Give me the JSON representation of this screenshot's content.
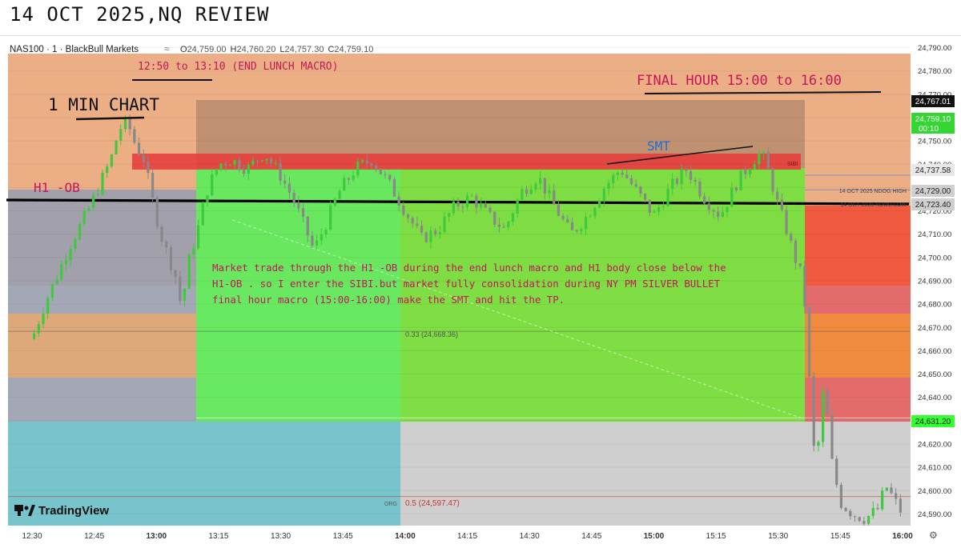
{
  "page_title": "14 OCT 2025,NQ REVIEW",
  "header": {
    "symbol": "NAS100 · 1 · BlackBull Markets",
    "ohlc": [
      {
        "k": "O",
        "v": "24,759.00"
      },
      {
        "k": "H",
        "v": "24,760.20"
      },
      {
        "k": "L",
        "v": "24,757.30"
      },
      {
        "k": "C",
        "v": "24,759.10"
      }
    ]
  },
  "annotations": {
    "lunch_macro": "12:50 to 13:10 (END LUNCH MACRO)",
    "final_hour": "FINAL HOUR 15:00 to 16:00",
    "min_chart": "1 MIN CHART",
    "h1_ob": "H1 -OB",
    "smt": "SMT",
    "sibi": "SIBI",
    "ndog_high": "14 OCT 2025 NDOG HIGH",
    "ndog_low": "14 OCT 2025 NDOG LOW",
    "fib_033": "0.33 (24,668.36)",
    "fib_05": "0.5 (24,597.47)",
    "org": "ORG",
    "note_lines": [
      "Market trade through the H1 -OB during the end lunch macro and H1 body close below the",
      "H1-OB . so I enter the SIBI.but market fully consolidation during NY PM SILVER BULLET",
      "final hour macro (15:00-16:00) make the SMT and hit the TP."
    ]
  },
  "price_labels": {
    "top": "24,767.01",
    "current": "24,759.10",
    "countdown": "00:10",
    "p737": "24,737.58",
    "p729": "24,729.00",
    "p723": "24,723.40",
    "tp": "24,631.20"
  },
  "watermark": "TradingView",
  "colors": {
    "orange_zone": "#e8a070",
    "green_zone": "#5cf25c",
    "cyan_zone": "#78c4cc",
    "red_box": "#e83a3a",
    "up_candle": "#3ec93e",
    "down_candle": "#888888"
  },
  "chart_data": {
    "type": "candlestick",
    "y_ticks": [
      24590,
      24600,
      24610,
      24620,
      24630,
      24640,
      24650,
      24660,
      24670,
      24680,
      24690,
      24700,
      24710,
      24720,
      24730,
      24740,
      24750,
      24760,
      24770,
      24780,
      24790
    ],
    "ylim": [
      24585,
      24795
    ],
    "x_ticks": [
      "12:30",
      "12:45",
      "13:00",
      "13:15",
      "13:30",
      "13:45",
      "14:00",
      "14:15",
      "14:30",
      "14:45",
      "15:00",
      "15:15",
      "15:30",
      "15:45",
      "16:00"
    ],
    "x_range_minutes": [
      0,
      210
    ],
    "price_path": [
      [
        0,
        24665
      ],
      [
        3,
        24680
      ],
      [
        6,
        24692
      ],
      [
        9,
        24705
      ],
      [
        12,
        24715
      ],
      [
        14,
        24722
      ],
      [
        16,
        24730
      ],
      [
        19,
        24742
      ],
      [
        21,
        24755
      ],
      [
        23,
        24758
      ],
      [
        25,
        24748
      ],
      [
        27,
        24742
      ],
      [
        29,
        24725
      ],
      [
        31,
        24710
      ],
      [
        33,
        24700
      ],
      [
        35,
        24690
      ],
      [
        36,
        24678
      ],
      [
        38,
        24700
      ],
      [
        40,
        24712
      ],
      [
        42,
        24728
      ],
      [
        45,
        24740
      ],
      [
        48,
        24742
      ],
      [
        52,
        24738
      ],
      [
        56,
        24745
      ],
      [
        60,
        24735
      ],
      [
        63,
        24725
      ],
      [
        66,
        24712
      ],
      [
        68,
        24703
      ],
      [
        71,
        24715
      ],
      [
        74,
        24728
      ],
      [
        78,
        24738
      ],
      [
        82,
        24742
      ],
      [
        86,
        24732
      ],
      [
        90,
        24720
      ],
      [
        94,
        24708
      ],
      [
        98,
        24712
      ],
      [
        102,
        24722
      ],
      [
        106,
        24726
      ],
      [
        110,
        24718
      ],
      [
        114,
        24712
      ],
      [
        118,
        24728
      ],
      [
        122,
        24735
      ],
      [
        126,
        24722
      ],
      [
        130,
        24710
      ],
      [
        134,
        24718
      ],
      [
        138,
        24730
      ],
      [
        142,
        24738
      ],
      [
        146,
        24728
      ],
      [
        150,
        24718
      ],
      [
        154,
        24730
      ],
      [
        158,
        24738
      ],
      [
        162,
        24726
      ],
      [
        166,
        24718
      ],
      [
        170,
        24732
      ],
      [
        174,
        24742
      ],
      [
        176,
        24745
      ],
      [
        178,
        24735
      ],
      [
        180,
        24722
      ],
      [
        182,
        24712
      ],
      [
        184,
        24700
      ],
      [
        186,
        24690
      ],
      [
        187,
        24665
      ],
      [
        188,
        24630
      ],
      [
        189,
        24610
      ],
      [
        190,
        24625
      ],
      [
        191,
        24645
      ],
      [
        192,
        24630
      ],
      [
        193,
        24612
      ],
      [
        195,
        24595
      ],
      [
        198,
        24590
      ],
      [
        201,
        24588
      ],
      [
        204,
        24592
      ],
      [
        206,
        24602
      ],
      [
        208,
        24596
      ],
      [
        210,
        24590
      ]
    ],
    "levels": {
      "box_top": 24767.01,
      "sibi_top": 24744,
      "sibi_bottom": 24736,
      "ndog_high": 24729.0,
      "ndog_low": 24723.4,
      "h1_ob_line": 24726,
      "tp": 24631.2,
      "fib_033": 24668.36,
      "fib_05": 24597.47
    }
  }
}
